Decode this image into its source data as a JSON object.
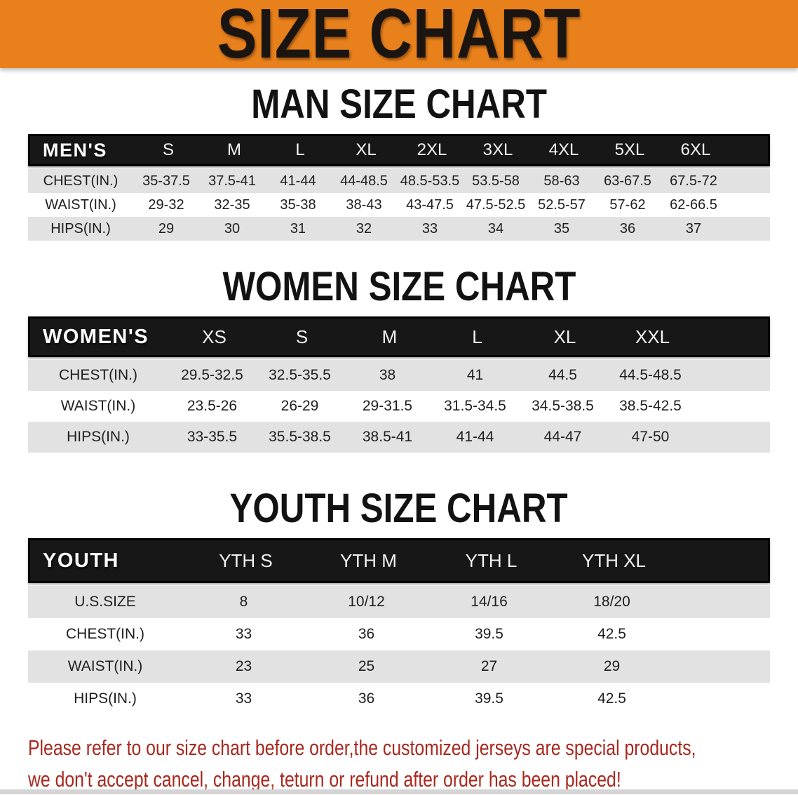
{
  "banner": {
    "title": "SIZE CHART"
  },
  "theme": {
    "banner_bg": "#e8811c",
    "banner_text": "#1a1510",
    "table_header_bg": "#171717",
    "table_header_text": "#ffffff",
    "row_alt_bg": "#e2e2e2",
    "row_bg": "#ffffff",
    "note_color": "#a8281e"
  },
  "sections": [
    {
      "heading": "MAN SIZE CHART",
      "table": {
        "header_label": "MEN'S",
        "columns": [
          "S",
          "M",
          "L",
          "XL",
          "2XL",
          "3XL",
          "4XL",
          "5XL",
          "6XL"
        ],
        "rows": [
          {
            "label": "CHEST(IN.)",
            "values": [
              "35-37.5",
              "37.5-41",
              "41-44",
              "44-48.5",
              "48.5-53.5",
              "53.5-58",
              "58-63",
              "63-67.5",
              "67.5-72"
            ]
          },
          {
            "label": "WAIST(IN.)",
            "values": [
              "29-32",
              "32-35",
              "35-38",
              "38-43",
              "43-47.5",
              "47.5-52.5",
              "52.5-57",
              "57-62",
              "62-66.5"
            ]
          },
          {
            "label": "HIPS(IN.)",
            "values": [
              "29",
              "30",
              "31",
              "32",
              "33",
              "34",
              "35",
              "36",
              "37"
            ]
          }
        ]
      }
    },
    {
      "heading": "WOMEN SIZE CHART",
      "table": {
        "header_label": "WOMEN'S",
        "columns": [
          "XS",
          "S",
          "M",
          "L",
          "XL",
          "XXL"
        ],
        "rows": [
          {
            "label": "CHEST(IN.)",
            "values": [
              "29.5-32.5",
              "32.5-35.5",
              "38",
              "41",
              "44.5",
              "44.5-48.5"
            ]
          },
          {
            "label": "WAIST(IN.)",
            "values": [
              "23.5-26",
              "26-29",
              "29-31.5",
              "31.5-34.5",
              "34.5-38.5",
              "38.5-42.5"
            ]
          },
          {
            "label": "HIPS(IN.)",
            "values": [
              "33-35.5",
              "35.5-38.5",
              "38.5-41",
              "41-44",
              "44-47",
              "47-50"
            ]
          }
        ]
      }
    },
    {
      "heading": "YOUTH SIZE CHART",
      "table": {
        "header_label": "YOUTH",
        "columns": [
          "YTH S",
          "YTH M",
          "YTH L",
          "YTH XL"
        ],
        "rows": [
          {
            "label": "U.S.SIZE",
            "values": [
              "8",
              "10/12",
              "14/16",
              "18/20"
            ]
          },
          {
            "label": "CHEST(IN.)",
            "values": [
              "33",
              "36",
              "39.5",
              "42.5"
            ]
          },
          {
            "label": "WAIST(IN.)",
            "values": [
              "23",
              "25",
              "27",
              "29"
            ]
          },
          {
            "label": "HIPS(IN.)",
            "values": [
              "33",
              "36",
              "39.5",
              "42.5"
            ]
          }
        ]
      }
    }
  ],
  "footer_note": {
    "line1": "Please refer to our size chart before order,the customized jerseys are special products,",
    "line2": "we don't accept cancel, change, teturn or refund after order has been placed!"
  }
}
